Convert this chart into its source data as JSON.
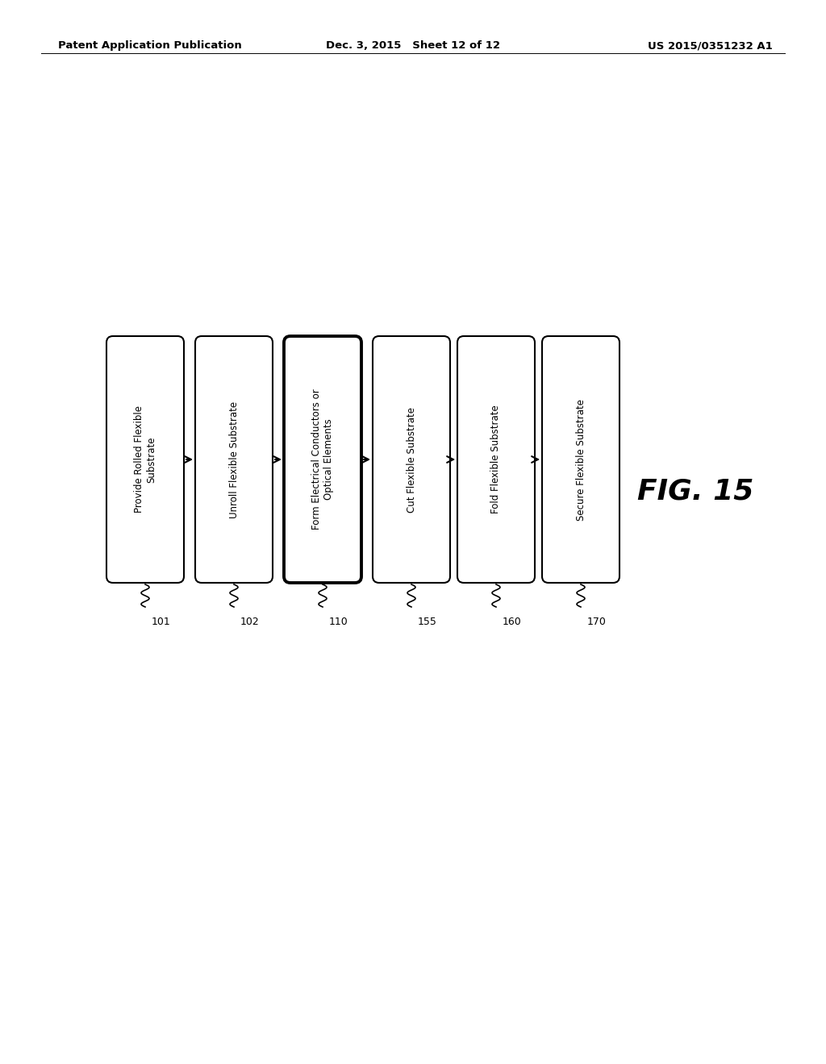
{
  "title_left": "Patent Application Publication",
  "title_center": "Dec. 3, 2015   Sheet 12 of 12",
  "title_right": "US 2015/0351232 A1",
  "fig_label": "FIG. 15",
  "background_color": "#ffffff",
  "boxes": [
    {
      "label": "Provide Rolled Flexible\nSubstrate",
      "number": "101",
      "bold_border": false
    },
    {
      "label": "Unroll Flexible Substrate",
      "number": "102",
      "bold_border": false
    },
    {
      "label": "Form Electrical Conductors or\nOptical Elements",
      "number": "110",
      "bold_border": true
    },
    {
      "label": "Cut Flexible Substrate",
      "number": "155",
      "bold_border": false
    },
    {
      "label": "Fold Flexible Substrate",
      "number": "160",
      "bold_border": false
    },
    {
      "label": "Secure Flexible Substrate",
      "number": "170",
      "bold_border": false
    }
  ],
  "arrow_color": "#000000",
  "border_color": "#000000",
  "text_color": "#000000",
  "font_size": 8.5,
  "number_font_size": 9.0,
  "fig_font_size": 26,
  "header_fontsize": 9.5
}
